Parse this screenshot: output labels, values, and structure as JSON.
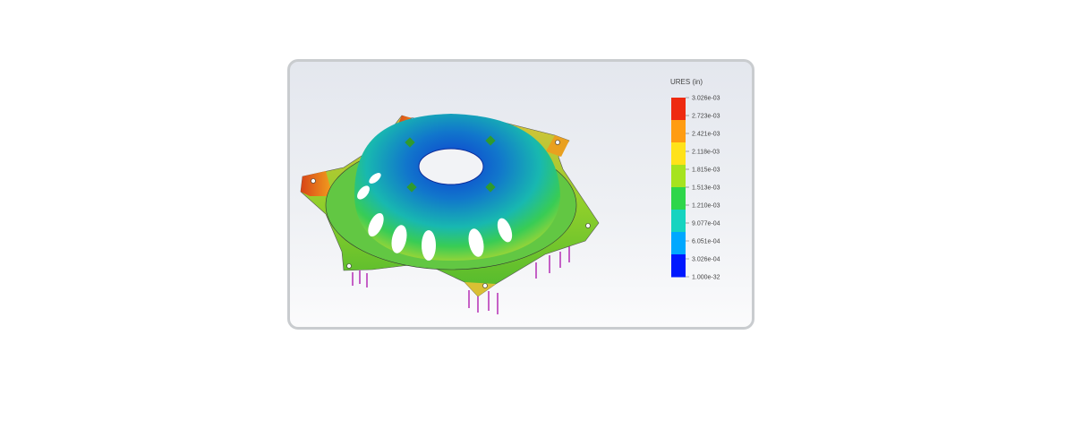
{
  "legend": {
    "title": "URES (in)",
    "labels": [
      "3.026e-03",
      "2.723e-03",
      "2.421e-03",
      "2.118e-03",
      "1.815e-03",
      "1.513e-03",
      "1.210e-03",
      "9.077e-04",
      "6.051e-04",
      "3.026e-04",
      "1.000e-32"
    ],
    "colors": [
      "#0018ff",
      "#00a8ff",
      "#16d4c0",
      "#2ed64a",
      "#a6e31f",
      "#ffe21a",
      "#ff9c12",
      "#ee2a10"
    ]
  },
  "model": {
    "name": "hub-plate-displacement-plot",
    "arm_color": "#c8a23a",
    "dome_color": "#1d7bc8",
    "load_arrow_color": "#b020b0",
    "fixture_color": "#2f9a2f"
  }
}
